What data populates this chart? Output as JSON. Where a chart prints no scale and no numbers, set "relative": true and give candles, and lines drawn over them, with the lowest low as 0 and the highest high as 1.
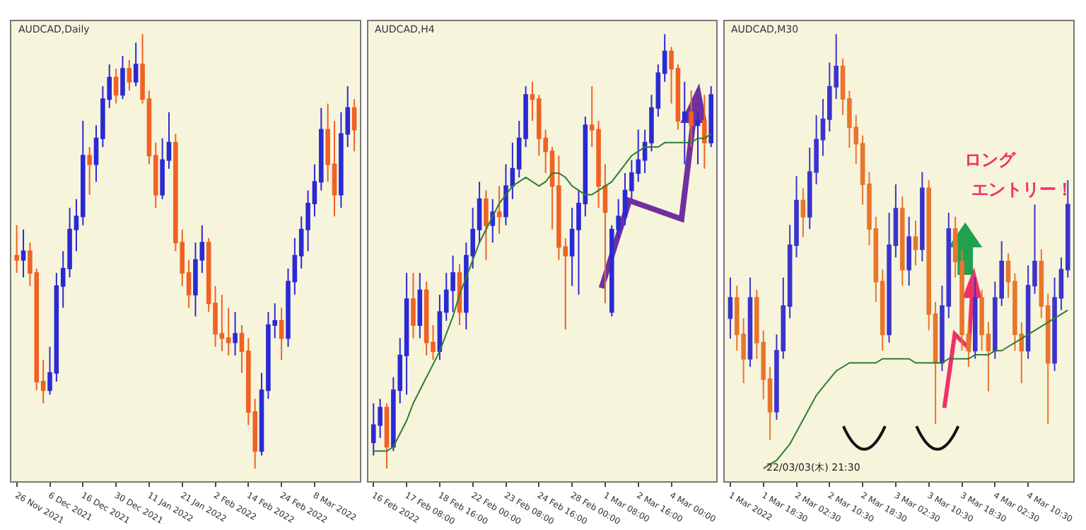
{
  "chart_data": [
    {
      "type": "candlestick",
      "title": "AUDCAD,Daily",
      "relative": true,
      "tick_labels": "x",
      "grid": false,
      "categories": [
        "26 Nov 2021",
        null,
        null,
        null,
        null,
        "6 Dec 2021",
        null,
        null,
        null,
        null,
        "16 Dec 2021",
        null,
        null,
        null,
        null,
        "30 Dec 2021",
        null,
        null,
        null,
        null,
        "11 Jan 2022",
        null,
        null,
        null,
        null,
        "21 Jan 2022",
        null,
        null,
        null,
        null,
        "2 Feb 2022",
        null,
        null,
        null,
        null,
        "14 Feb 2022",
        null,
        null,
        null,
        null,
        "24 Feb 2022",
        null,
        null,
        null,
        null,
        "8 Mar 2022",
        null,
        null,
        null,
        null,
        null,
        null
      ],
      "series": [
        {
          "colors": [
            "#f06224",
            "#2a2ad4",
            "#f06224",
            "#f06224",
            "#f06224",
            "#2a2ad4",
            "#2a2ad4",
            "#2a2ad4",
            "#2a2ad4",
            "#2a2ad4",
            "#2a2ad4",
            "#f06224",
            "#2a2ad4",
            "#2a2ad4",
            "#2a2ad4",
            "#f06224",
            "#2a2ad4",
            "#f06224",
            "#2a2ad4",
            "#f06224",
            "#f06224",
            "#f06224",
            "#2a2ad4",
            "#2a2ad4",
            "#f06224",
            "#f06224",
            "#f06224",
            "#2a2ad4",
            "#2a2ad4",
            "#f06224",
            "#f06224",
            "#f06224",
            "#f06224",
            "#2a2ad4",
            "#f06224",
            "#f06224",
            "#f06224",
            "#2a2ad4",
            "#2a2ad4",
            "#2a2ad4",
            "#f06224",
            "#2a2ad4",
            "#2a2ad4",
            "#2a2ad4",
            "#2a2ad4",
            "#2a2ad4",
            "#2a2ad4",
            "#f06224",
            "#f06224",
            "#2a2ad4",
            "#2a2ad4",
            "#f06224"
          ],
          "ohlc": [
            [
              0.49,
              0.56,
              0.45,
              0.48
            ],
            [
              0.48,
              0.55,
              0.44,
              0.5
            ],
            [
              0.5,
              0.52,
              0.42,
              0.45
            ],
            [
              0.45,
              0.46,
              0.18,
              0.2
            ],
            [
              0.2,
              0.25,
              0.15,
              0.18
            ],
            [
              0.18,
              0.28,
              0.17,
              0.22
            ],
            [
              0.22,
              0.45,
              0.2,
              0.42
            ],
            [
              0.42,
              0.5,
              0.37,
              0.46
            ],
            [
              0.46,
              0.6,
              0.44,
              0.55
            ],
            [
              0.55,
              0.62,
              0.5,
              0.58
            ],
            [
              0.58,
              0.8,
              0.56,
              0.72
            ],
            [
              0.72,
              0.74,
              0.63,
              0.7
            ],
            [
              0.7,
              0.79,
              0.66,
              0.76
            ],
            [
              0.76,
              0.88,
              0.74,
              0.85
            ],
            [
              0.85,
              0.93,
              0.83,
              0.9
            ],
            [
              0.9,
              0.92,
              0.84,
              0.86
            ],
            [
              0.86,
              0.95,
              0.85,
              0.92
            ],
            [
              0.92,
              0.94,
              0.87,
              0.89
            ],
            [
              0.89,
              0.98,
              0.88,
              0.93
            ],
            [
              0.93,
              1.0,
              0.84,
              0.85
            ],
            [
              0.85,
              0.87,
              0.7,
              0.72
            ],
            [
              0.72,
              0.75,
              0.6,
              0.63
            ],
            [
              0.63,
              0.76,
              0.62,
              0.71
            ],
            [
              0.71,
              0.82,
              0.69,
              0.75
            ],
            [
              0.75,
              0.77,
              0.5,
              0.52
            ],
            [
              0.52,
              0.55,
              0.42,
              0.45
            ],
            [
              0.45,
              0.48,
              0.37,
              0.4
            ],
            [
              0.4,
              0.52,
              0.35,
              0.48
            ],
            [
              0.48,
              0.56,
              0.45,
              0.52
            ],
            [
              0.52,
              0.53,
              0.36,
              0.38
            ],
            [
              0.38,
              0.42,
              0.28,
              0.31
            ],
            [
              0.31,
              0.4,
              0.27,
              0.3
            ],
            [
              0.3,
              0.37,
              0.26,
              0.29
            ],
            [
              0.29,
              0.36,
              0.26,
              0.31
            ],
            [
              0.31,
              0.33,
              0.22,
              0.27
            ],
            [
              0.27,
              0.3,
              0.1,
              0.13
            ],
            [
              0.13,
              0.16,
              0.0,
              0.04
            ],
            [
              0.04,
              0.22,
              0.03,
              0.18
            ],
            [
              0.18,
              0.36,
              0.16,
              0.33
            ],
            [
              0.33,
              0.38,
              0.3,
              0.34
            ],
            [
              0.34,
              0.37,
              0.25,
              0.3
            ],
            [
              0.3,
              0.46,
              0.28,
              0.43
            ],
            [
              0.43,
              0.53,
              0.4,
              0.49
            ],
            [
              0.49,
              0.58,
              0.46,
              0.55
            ],
            [
              0.55,
              0.64,
              0.5,
              0.61
            ],
            [
              0.61,
              0.7,
              0.58,
              0.66
            ],
            [
              0.66,
              0.83,
              0.64,
              0.78
            ],
            [
              0.78,
              0.84,
              0.66,
              0.7
            ],
            [
              0.7,
              0.8,
              0.58,
              0.63
            ],
            [
              0.63,
              0.82,
              0.6,
              0.77
            ],
            [
              0.77,
              0.88,
              0.74,
              0.83
            ],
            [
              0.83,
              0.85,
              0.73,
              0.78
            ]
          ]
        }
      ]
    },
    {
      "type": "candlestick",
      "title": "AUDCAD,H4",
      "relative": true,
      "tick_labels": "x",
      "grid": false,
      "categories": [
        "16 Feb 2022",
        null,
        null,
        null,
        null,
        "17 Feb 08:00",
        null,
        null,
        null,
        null,
        "18 Feb 16:00",
        null,
        null,
        null,
        null,
        "22 Feb 00:00",
        null,
        null,
        null,
        null,
        "23 Feb 08:00",
        null,
        null,
        null,
        null,
        "24 Feb 16:00",
        null,
        null,
        null,
        null,
        "28 Feb 00:00",
        null,
        null,
        null,
        null,
        "1 Mar 08:00",
        null,
        null,
        null,
        null,
        "2 Mar 16:00",
        null,
        null,
        null,
        null,
        "4 Mar 00:00",
        null,
        null,
        null,
        null,
        null,
        null
      ],
      "series": [
        {
          "colors": [
            "#2a2ad4",
            "#2a2ad4",
            "#f06224",
            "#2a2ad4",
            "#2a2ad4",
            "#2a2ad4",
            "#f06224",
            "#2a2ad4",
            "#f06224",
            "#f06224",
            "#2a2ad4",
            "#2a2ad4",
            "#2a2ad4",
            "#f06224",
            "#2a2ad4",
            "#2a2ad4",
            "#2a2ad4",
            "#f06224",
            "#2a2ad4",
            "#f06224",
            "#2a2ad4",
            "#2a2ad4",
            "#2a2ad4",
            "#2a2ad4",
            "#f06224",
            "#f06224",
            "#f06224",
            "#f06224",
            "#f06224",
            "#f06224",
            "#2a2ad4",
            "#2a2ad4",
            "#2a2ad4",
            "#f06224",
            "#f06224",
            "#f06224",
            "#2a2ad4",
            "#2a2ad4",
            "#2a2ad4",
            "#2a2ad4",
            "#2a2ad4",
            "#2a2ad4",
            "#2a2ad4",
            "#2a2ad4",
            "#2a2ad4",
            "#f06224",
            "#f06224",
            "#2a2ad4",
            "#f06224",
            "#2a2ad4",
            "#f06224",
            "#2a2ad4"
          ],
          "ohlc": [
            [
              0.06,
              0.15,
              0.03,
              0.1
            ],
            [
              0.1,
              0.16,
              0.07,
              0.14
            ],
            [
              0.14,
              0.15,
              0.0,
              0.05
            ],
            [
              0.05,
              0.21,
              0.04,
              0.18
            ],
            [
              0.18,
              0.3,
              0.15,
              0.26
            ],
            [
              0.26,
              0.45,
              0.17,
              0.39
            ],
            [
              0.39,
              0.45,
              0.3,
              0.33
            ],
            [
              0.33,
              0.45,
              0.3,
              0.41
            ],
            [
              0.41,
              0.43,
              0.26,
              0.29
            ],
            [
              0.29,
              0.33,
              0.25,
              0.27
            ],
            [
              0.27,
              0.4,
              0.25,
              0.36
            ],
            [
              0.36,
              0.45,
              0.34,
              0.41
            ],
            [
              0.41,
              0.49,
              0.36,
              0.45
            ],
            [
              0.45,
              0.47,
              0.33,
              0.36
            ],
            [
              0.36,
              0.52,
              0.32,
              0.49
            ],
            [
              0.49,
              0.6,
              0.46,
              0.55
            ],
            [
              0.55,
              0.66,
              0.52,
              0.62
            ],
            [
              0.62,
              0.64,
              0.48,
              0.56
            ],
            [
              0.56,
              0.62,
              0.52,
              0.59
            ],
            [
              0.59,
              0.65,
              0.54,
              0.58
            ],
            [
              0.58,
              0.7,
              0.56,
              0.65
            ],
            [
              0.65,
              0.75,
              0.62,
              0.69
            ],
            [
              0.69,
              0.8,
              0.67,
              0.76
            ],
            [
              0.76,
              0.88,
              0.74,
              0.86
            ],
            [
              0.86,
              0.89,
              0.8,
              0.85
            ],
            [
              0.85,
              0.86,
              0.72,
              0.76
            ],
            [
              0.76,
              0.78,
              0.68,
              0.73
            ],
            [
              0.73,
              0.74,
              0.55,
              0.65
            ],
            [
              0.65,
              0.72,
              0.48,
              0.51
            ],
            [
              0.51,
              0.53,
              0.32,
              0.49
            ],
            [
              0.49,
              0.6,
              0.42,
              0.55
            ],
            [
              0.55,
              0.64,
              0.4,
              0.61
            ],
            [
              0.61,
              0.81,
              0.58,
              0.79
            ],
            [
              0.79,
              0.88,
              0.74,
              0.78
            ],
            [
              0.78,
              0.8,
              0.6,
              0.65
            ],
            [
              0.65,
              0.7,
              0.38,
              0.59
            ],
            [
              0.36,
              0.56,
              0.35,
              0.55
            ],
            [
              0.55,
              0.62,
              0.53,
              0.58
            ],
            [
              0.58,
              0.68,
              0.56,
              0.64
            ],
            [
              0.64,
              0.71,
              0.62,
              0.68
            ],
            [
              0.68,
              0.78,
              0.66,
              0.71
            ],
            [
              0.71,
              0.78,
              0.68,
              0.75
            ],
            [
              0.75,
              0.86,
              0.73,
              0.83
            ],
            [
              0.83,
              0.93,
              0.81,
              0.91
            ],
            [
              0.91,
              1.0,
              0.89,
              0.96
            ],
            [
              0.96,
              0.97,
              0.84,
              0.92
            ],
            [
              0.92,
              0.93,
              0.78,
              0.8
            ],
            [
              0.8,
              0.89,
              0.7,
              0.82
            ],
            [
              0.82,
              0.87,
              0.74,
              0.79
            ],
            [
              0.79,
              0.82,
              0.7,
              0.8
            ],
            [
              0.8,
              0.86,
              0.69,
              0.75
            ],
            [
              0.75,
              0.88,
              0.74,
              0.86
            ]
          ]
        },
        {
          "type": "line",
          "color": "#2e7d32",
          "values": [
            0.04,
            0.04,
            0.04,
            0.05,
            0.08,
            0.11,
            0.15,
            0.18,
            0.21,
            0.24,
            0.27,
            0.31,
            0.35,
            0.4,
            0.44,
            0.48,
            0.52,
            0.55,
            0.58,
            0.61,
            0.63,
            0.65,
            0.66,
            0.67,
            0.66,
            0.65,
            0.66,
            0.68,
            0.68,
            0.67,
            0.65,
            0.64,
            0.63,
            0.63,
            0.64,
            0.65,
            0.66,
            0.68,
            0.7,
            0.72,
            0.73,
            0.74,
            0.74,
            0.74,
            0.75,
            0.75,
            0.75,
            0.75,
            0.75,
            0.76,
            0.76,
            0.77
          ]
        }
      ]
    },
    {
      "type": "candlestick",
      "title": "AUDCAD,M30",
      "relative": true,
      "tick_labels": "x",
      "grid": false,
      "annotations": [
        "ロング",
        "エントリー！",
        "22/03/03(木) 21:30"
      ],
      "categories": [
        "1 Mar 2022",
        null,
        null,
        null,
        null,
        "1 Mar 18:30",
        null,
        null,
        null,
        null,
        "2 Mar 02:30",
        null,
        null,
        null,
        null,
        "2 Mar 10:30",
        null,
        null,
        null,
        null,
        "2 Mar 18:30",
        null,
        null,
        null,
        null,
        "3 Mar 02:30",
        null,
        null,
        null,
        null,
        "3 Mar 10:30",
        null,
        null,
        null,
        null,
        "3 Mar 18:30",
        null,
        null,
        null,
        null,
        "4 Mar 02:30",
        null,
        null,
        null,
        null,
        "4 Mar 10:30",
        null,
        null,
        null,
        null,
        null,
        null
      ],
      "series": [
        {
          "colors": [
            "#3b34cc",
            "#e8762c",
            "#e8762c",
            "#3b34cc",
            "#e8762c",
            "#e8762c",
            "#e8762c",
            "#3b34cc",
            "#3b34cc",
            "#3b34cc",
            "#3b34cc",
            "#e8762c",
            "#3b34cc",
            "#3b34cc",
            "#3b34cc",
            "#3b34cc",
            "#3b34cc",
            "#e8762c",
            "#e8762c",
            "#e8762c",
            "#e8762c",
            "#e8762c",
            "#e8762c",
            "#e8762c",
            "#3b34cc",
            "#3b34cc",
            "#e8762c",
            "#3b34cc",
            "#e8762c",
            "#3b34cc",
            "#e8762c",
            "#e8762c",
            "#3b34cc",
            "#3b34cc",
            "#e8762c",
            "#e8762c",
            "#e8762c",
            "#3b34cc",
            "#e8762c",
            "#e8762c",
            "#3b34cc",
            "#3b34cc",
            "#e8762c",
            "#e8762c",
            "#e8762c",
            "#3b34cc",
            "#3b34cc",
            "#e8762c",
            "#e8762c",
            "#3b34cc",
            "#3b34cc",
            "#3b34cc"
          ],
          "ohlc": [
            [
              0.3,
              0.4,
              0.25,
              0.35
            ],
            [
              0.35,
              0.38,
              0.22,
              0.26
            ],
            [
              0.26,
              0.3,
              0.14,
              0.2
            ],
            [
              0.2,
              0.4,
              0.18,
              0.35
            ],
            [
              0.35,
              0.37,
              0.2,
              0.24
            ],
            [
              0.24,
              0.27,
              0.1,
              0.15
            ],
            [
              0.15,
              0.18,
              0.0,
              0.07
            ],
            [
              0.07,
              0.26,
              0.05,
              0.22
            ],
            [
              0.22,
              0.4,
              0.2,
              0.33
            ],
            [
              0.33,
              0.53,
              0.3,
              0.48
            ],
            [
              0.48,
              0.65,
              0.45,
              0.59
            ],
            [
              0.59,
              0.62,
              0.5,
              0.55
            ],
            [
              0.55,
              0.72,
              0.52,
              0.66
            ],
            [
              0.66,
              0.8,
              0.63,
              0.74
            ],
            [
              0.74,
              0.84,
              0.7,
              0.79
            ],
            [
              0.79,
              0.93,
              0.76,
              0.87
            ],
            [
              0.87,
              1.0,
              0.84,
              0.92
            ],
            [
              0.92,
              0.94,
              0.8,
              0.84
            ],
            [
              0.84,
              0.86,
              0.72,
              0.77
            ],
            [
              0.77,
              0.8,
              0.68,
              0.73
            ],
            [
              0.73,
              0.75,
              0.58,
              0.63
            ],
            [
              0.63,
              0.66,
              0.48,
              0.52
            ],
            [
              0.52,
              0.55,
              0.34,
              0.39
            ],
            [
              0.39,
              0.42,
              0.22,
              0.26
            ],
            [
              0.26,
              0.56,
              0.24,
              0.48
            ],
            [
              0.48,
              0.63,
              0.45,
              0.57
            ],
            [
              0.57,
              0.6,
              0.38,
              0.42
            ],
            [
              0.42,
              0.55,
              0.38,
              0.5
            ],
            [
              0.5,
              0.54,
              0.43,
              0.47
            ],
            [
              0.47,
              0.66,
              0.44,
              0.62
            ],
            [
              0.62,
              0.64,
              0.27,
              0.31
            ],
            [
              0.31,
              0.34,
              0.04,
              0.19
            ],
            [
              0.19,
              0.38,
              0.17,
              0.33
            ],
            [
              0.33,
              0.56,
              0.3,
              0.52
            ],
            [
              0.52,
              0.55,
              0.4,
              0.44
            ],
            [
              0.44,
              0.47,
              0.22,
              0.26
            ],
            [
              0.26,
              0.29,
              0.18,
              0.22
            ],
            [
              0.22,
              0.4,
              0.2,
              0.35
            ],
            [
              0.35,
              0.37,
              0.22,
              0.26
            ],
            [
              0.26,
              0.29,
              0.12,
              0.22
            ],
            [
              0.22,
              0.39,
              0.2,
              0.35
            ],
            [
              0.35,
              0.49,
              0.33,
              0.44
            ],
            [
              0.44,
              0.46,
              0.35,
              0.39
            ],
            [
              0.39,
              0.41,
              0.22,
              0.26
            ],
            [
              0.26,
              0.29,
              0.14,
              0.22
            ],
            [
              0.22,
              0.43,
              0.2,
              0.38
            ],
            [
              0.38,
              0.58,
              0.36,
              0.44
            ],
            [
              0.44,
              0.47,
              0.3,
              0.33
            ],
            [
              0.33,
              0.36,
              0.04,
              0.19
            ],
            [
              0.19,
              0.4,
              0.17,
              0.35
            ],
            [
              0.35,
              0.45,
              0.32,
              0.42
            ],
            [
              0.42,
              0.64,
              0.4,
              0.58
            ]
          ]
        },
        {
          "type": "line",
          "color": "#2e7d32",
          "values": [
            null,
            null,
            null,
            null,
            null,
            -0.07,
            -0.06,
            -0.05,
            -0.03,
            -0.01,
            0.02,
            0.05,
            0.08,
            0.11,
            0.13,
            0.15,
            0.17,
            0.18,
            0.19,
            0.19,
            0.19,
            0.19,
            0.19,
            0.2,
            0.2,
            0.2,
            0.2,
            0.2,
            0.19,
            0.19,
            0.19,
            0.19,
            0.19,
            0.2,
            0.2,
            0.2,
            0.2,
            0.21,
            0.21,
            0.21,
            0.22,
            0.22,
            0.23,
            0.24,
            0.25,
            0.26,
            0.27,
            0.28,
            0.29,
            0.3,
            0.31,
            0.32
          ]
        }
      ]
    }
  ]
}
